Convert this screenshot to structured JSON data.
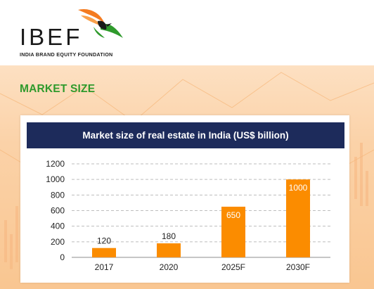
{
  "brand": {
    "logo_text": "IBEF",
    "logo_subtext": "INDIA BRAND EQUITY FOUNDATION"
  },
  "section": {
    "title": "MARKET SIZE"
  },
  "colors": {
    "bar": "#fb8c00",
    "title_bar": "#1d2b5b",
    "section_title": "#2f9a2c"
  },
  "chart_data": {
    "type": "bar",
    "title": "Market size of real estate in India (US$ billion)",
    "categories": [
      "2017",
      "2020",
      "2025F",
      "2030F"
    ],
    "values": [
      120,
      180,
      650,
      1000
    ],
    "data_labels": [
      "120",
      "180",
      "650",
      "1000"
    ],
    "ylim": [
      0,
      1200
    ],
    "yticks": [
      0,
      200,
      400,
      600,
      800,
      1000,
      1200
    ],
    "ytick_labels": [
      "0",
      "200",
      "400",
      "600",
      "800",
      "1000",
      "1200"
    ],
    "grid": true,
    "grid_style": "dashed",
    "xlabel": "",
    "ylabel": ""
  }
}
